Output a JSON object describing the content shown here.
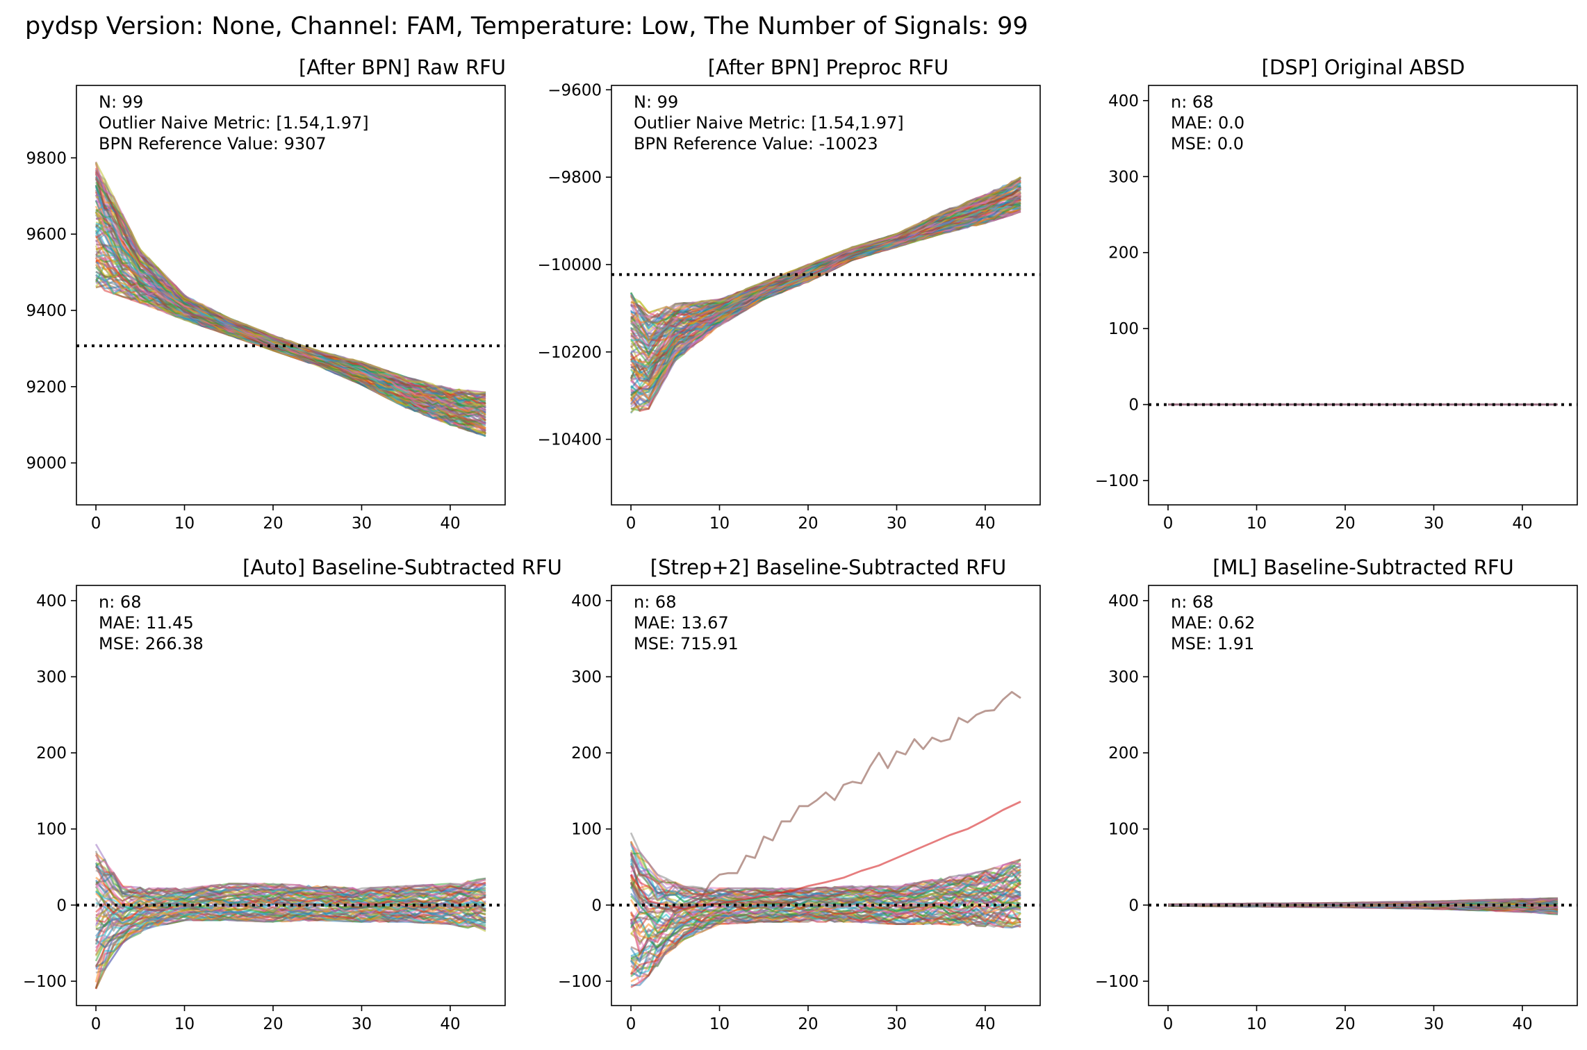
{
  "figure": {
    "suptitle": "pydsp Version: None, Channel: FAM, Temperature: Low, The Number of Signals: 99"
  },
  "chart_data": [
    {
      "id": "raw",
      "type": "line",
      "title": "[After BPN] Raw RFU",
      "xlim": [
        -2.2,
        46.2
      ],
      "ylim": [
        8890,
        9990
      ],
      "xticks": [
        0,
        10,
        20,
        30,
        40
      ],
      "yticks": [
        9000,
        9200,
        9400,
        9600,
        9800
      ],
      "annotation_lines": [
        "N: 99",
        "Outlier Naive Metric: [1.54,1.97]",
        "BPN Reference Value: 9307"
      ],
      "reference_line": 9307,
      "series_count": 99,
      "envelope": {
        "x": [
          0,
          5,
          10,
          15,
          20,
          25,
          30,
          35,
          40,
          44
        ],
        "lower": [
          9460,
          9420,
          9375,
          9335,
          9295,
          9255,
          9205,
          9145,
          9100,
          9070
        ],
        "upper": [
          9790,
          9560,
          9440,
          9380,
          9335,
          9295,
          9265,
          9225,
          9195,
          9185
        ]
      }
    },
    {
      "id": "preproc",
      "type": "line",
      "title": "[After BPN] Preproc RFU",
      "xlim": [
        -2.2,
        46.2
      ],
      "ylim": [
        -10550,
        -9590
      ],
      "xticks": [
        0,
        10,
        20,
        30,
        40
      ],
      "yticks": [
        -10400,
        -10200,
        -10000,
        -9800,
        -9600
      ],
      "annotation_lines": [
        "N: 99",
        "Outlier Naive Metric: [1.54,1.97]",
        "BPN Reference Value: -10023"
      ],
      "reference_line": -10023,
      "series_count": 99,
      "envelope": {
        "x": [
          0,
          2,
          5,
          10,
          15,
          20,
          25,
          30,
          35,
          40,
          44
        ],
        "lower": [
          -10340,
          -10330,
          -10220,
          -10140,
          -10080,
          -10040,
          -9990,
          -9960,
          -9930,
          -9905,
          -9880
        ],
        "upper": [
          -10060,
          -10110,
          -10090,
          -10080,
          -10040,
          -10000,
          -9960,
          -9930,
          -9880,
          -9840,
          -9800
        ]
      }
    },
    {
      "id": "dsp",
      "type": "line",
      "title": "[DSP] Original ABSD",
      "xlim": [
        -2.2,
        46.2
      ],
      "ylim": [
        -132,
        420
      ],
      "xticks": [
        0,
        10,
        20,
        30,
        40
      ],
      "yticks": [
        -100,
        0,
        100,
        200,
        300,
        400
      ],
      "annotation_lines": [
        "n: 68",
        "MAE: 0.0",
        "MSE: 0.0"
      ],
      "reference_line": 0,
      "series_count": 68
    },
    {
      "id": "auto",
      "type": "line",
      "title": "[Auto] Baseline-Subtracted RFU",
      "xlim": [
        -2.2,
        46.2
      ],
      "ylim": [
        -132,
        420
      ],
      "xticks": [
        0,
        10,
        20,
        30,
        40
      ],
      "yticks": [
        -100,
        0,
        100,
        200,
        300,
        400
      ],
      "annotation_lines": [
        "n: 68",
        "MAE: 11.45",
        "MSE: 266.38"
      ],
      "reference_line": 0,
      "series_count": 68,
      "envelope": {
        "x": [
          0,
          1,
          3,
          6,
          10,
          15,
          20,
          25,
          30,
          35,
          40,
          44
        ],
        "lower": [
          -110,
          -85,
          -50,
          -30,
          -20,
          -20,
          -22,
          -20,
          -22,
          -22,
          -25,
          -35
        ],
        "upper": [
          80,
          60,
          25,
          22,
          22,
          28,
          28,
          25,
          22,
          25,
          28,
          35
        ]
      }
    },
    {
      "id": "strep",
      "type": "line",
      "title": "[Strep+2] Baseline-Subtracted RFU",
      "xlim": [
        -2.2,
        46.2
      ],
      "ylim": [
        -132,
        420
      ],
      "xticks": [
        0,
        10,
        20,
        30,
        40
      ],
      "yticks": [
        -100,
        0,
        100,
        200,
        300,
        400
      ],
      "annotation_lines": [
        "n: 68",
        "MAE: 13.67",
        "MSE: 715.91"
      ],
      "reference_line": 0,
      "series_count": 68,
      "envelope": {
        "x": [
          0,
          1,
          3,
          6,
          10,
          15,
          20,
          25,
          30,
          35,
          40,
          44
        ],
        "lower": [
          -108,
          -105,
          -80,
          -45,
          -25,
          -22,
          -22,
          -22,
          -25,
          -25,
          -28,
          -30
        ],
        "upper": [
          95,
          70,
          40,
          25,
          22,
          22,
          22,
          25,
          25,
          35,
          45,
          60
        ]
      },
      "outliers": [
        {
          "x": [
            0,
            1,
            2,
            3,
            4,
            5,
            6,
            7,
            8,
            9,
            10,
            11,
            12,
            13,
            14,
            15,
            16,
            17,
            18,
            19,
            20,
            21,
            22,
            23,
            24,
            25,
            26,
            27,
            28,
            29,
            30,
            31,
            32,
            33,
            34,
            35,
            36,
            37,
            38,
            39,
            40,
            41,
            42,
            43,
            44
          ],
          "y": [
            30,
            10,
            2,
            -2,
            -5,
            -8,
            0,
            5,
            10,
            30,
            40,
            42,
            42,
            65,
            62,
            90,
            85,
            110,
            110,
            130,
            130,
            138,
            148,
            138,
            158,
            162,
            160,
            182,
            200,
            180,
            202,
            198,
            218,
            205,
            220,
            215,
            218,
            246,
            240,
            250,
            255,
            256,
            270,
            280,
            272
          ]
        },
        {
          "x": [
            0,
            2,
            4,
            6,
            8,
            10,
            12,
            14,
            16,
            18,
            20,
            22,
            24,
            26,
            28,
            30,
            32,
            34,
            36,
            38,
            40,
            42,
            44
          ],
          "y": [
            40,
            5,
            0,
            -5,
            0,
            2,
            6,
            10,
            15,
            18,
            25,
            30,
            36,
            45,
            52,
            62,
            72,
            82,
            92,
            100,
            112,
            125,
            136
          ]
        }
      ]
    },
    {
      "id": "ml",
      "type": "line",
      "title": "[ML] Baseline-Subtracted RFU",
      "xlim": [
        -2.2,
        46.2
      ],
      "ylim": [
        -132,
        420
      ],
      "xticks": [
        0,
        10,
        20,
        30,
        40
      ],
      "yticks": [
        -100,
        0,
        100,
        200,
        300,
        400
      ],
      "annotation_lines": [
        "n: 68",
        "MAE: 0.62",
        "MSE: 1.91"
      ],
      "reference_line": 0,
      "series_count": 68,
      "envelope": {
        "x": [
          0,
          10,
          20,
          30,
          40,
          44
        ],
        "lower": [
          -1,
          -2,
          -3,
          -5,
          -9,
          -12
        ],
        "upper": [
          1,
          2,
          3,
          5,
          8,
          9
        ]
      }
    }
  ],
  "colors": {
    "series_palette": [
      "#1f77b4",
      "#ff7f0e",
      "#2ca02c",
      "#d62728",
      "#9467bd",
      "#8c564b",
      "#e377c2",
      "#7f7f7f",
      "#bcbd22",
      "#17becf"
    ],
    "reference_line": "#000000",
    "axes": "#000000",
    "background": "#ffffff"
  }
}
